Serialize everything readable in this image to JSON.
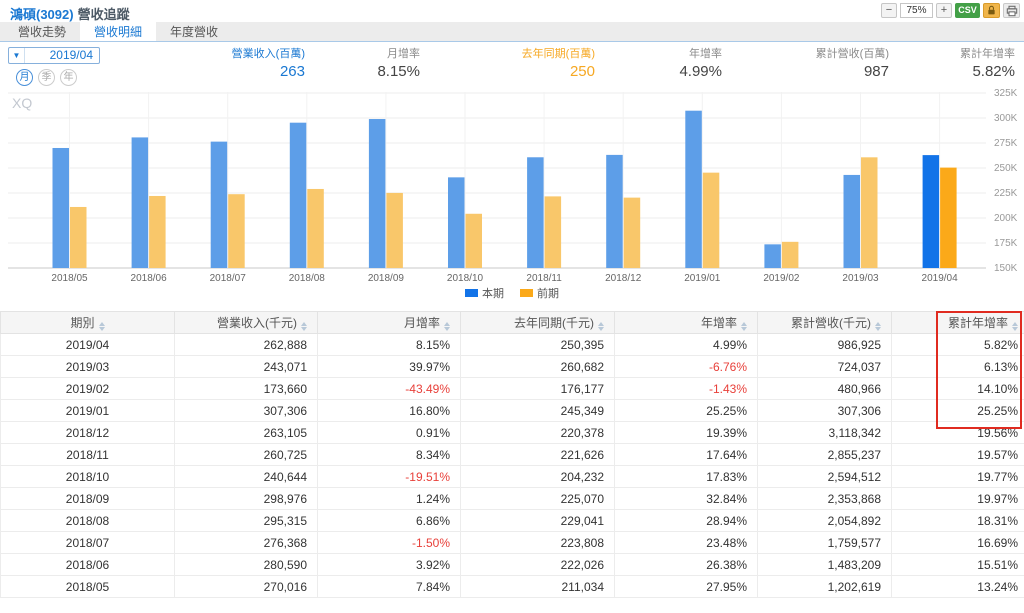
{
  "header": {
    "title_stock": "鴻碩(3092)",
    "title_suffix": "營收追蹤",
    "zoom_out": "−",
    "zoom_level": "75%",
    "zoom_in": "+",
    "csv_label": "CSV"
  },
  "tabs": [
    {
      "label": "營收走勢",
      "active": false
    },
    {
      "label": "營收明細",
      "active": true
    },
    {
      "label": "年度營收",
      "active": false
    }
  ],
  "controls": {
    "period_select": "2019/04",
    "period_buttons": [
      {
        "label": "月",
        "active": true
      },
      {
        "label": "季",
        "active": false
      },
      {
        "label": "年",
        "active": false
      }
    ]
  },
  "stats": [
    {
      "label": "營業收入(百萬)",
      "value": "263",
      "color": "blue"
    },
    {
      "label": "月增率",
      "value": "8.15%",
      "color": "default"
    },
    {
      "label": "去年同期(百萬)",
      "value": "250",
      "color": "orange"
    },
    {
      "label": "年增率",
      "value": "4.99%",
      "color": "default"
    },
    {
      "label": "累計營收(百萬)",
      "value": "987",
      "color": "default"
    },
    {
      "label": "累計年增率",
      "value": "5.82%",
      "color": "default"
    }
  ],
  "chart_data": {
    "type": "bar",
    "watermark": "XQ",
    "categories": [
      "2018/05",
      "2018/06",
      "2018/07",
      "2018/08",
      "2018/09",
      "2018/10",
      "2018/11",
      "2018/12",
      "2019/01",
      "2019/02",
      "2019/03",
      "2019/04"
    ],
    "series": [
      {
        "name": "本期",
        "color": "#5d9ee8",
        "highlight_color": "#1273e8",
        "values": [
          270016,
          280590,
          276368,
          295315,
          298976,
          240644,
          260725,
          263105,
          307306,
          173660,
          243071,
          262888
        ]
      },
      {
        "name": "前期",
        "color": "#f9c76a",
        "highlight_color": "#fba919",
        "values": [
          211034,
          222026,
          223808,
          229041,
          225070,
          204232,
          221626,
          220378,
          245349,
          176177,
          260682,
          250395
        ]
      }
    ],
    "highlight_index": 11,
    "ylim": [
      150000,
      325000
    ],
    "y_ticks": [
      "325K",
      "300K",
      "275K",
      "250K",
      "225K",
      "200K",
      "175K",
      "150K"
    ],
    "grid": true,
    "legend_position": "bottom"
  },
  "table": {
    "columns": [
      "期別",
      "營業收入(千元)",
      "月增率",
      "去年同期(千元)",
      "年增率",
      "累計營收(千元)",
      "累計年增率"
    ],
    "rows": [
      [
        "2019/04",
        "262,888",
        "8.15%",
        "250,395",
        "4.99%",
        "986,925",
        "5.82%"
      ],
      [
        "2019/03",
        "243,071",
        "39.97%",
        "260,682",
        "-6.76%",
        "724,037",
        "6.13%"
      ],
      [
        "2019/02",
        "173,660",
        "-43.49%",
        "176,177",
        "-1.43%",
        "480,966",
        "14.10%"
      ],
      [
        "2019/01",
        "307,306",
        "16.80%",
        "245,349",
        "25.25%",
        "307,306",
        "25.25%"
      ],
      [
        "2018/12",
        "263,105",
        "0.91%",
        "220,378",
        "19.39%",
        "3,118,342",
        "19.56%"
      ],
      [
        "2018/11",
        "260,725",
        "8.34%",
        "221,626",
        "17.64%",
        "2,855,237",
        "19.57%"
      ],
      [
        "2018/10",
        "240,644",
        "-19.51%",
        "204,232",
        "17.83%",
        "2,594,512",
        "19.77%"
      ],
      [
        "2018/09",
        "298,976",
        "1.24%",
        "225,070",
        "32.84%",
        "2,353,868",
        "19.97%"
      ],
      [
        "2018/08",
        "295,315",
        "6.86%",
        "229,041",
        "28.94%",
        "2,054,892",
        "18.31%"
      ],
      [
        "2018/07",
        "276,368",
        "-1.50%",
        "223,808",
        "23.48%",
        "1,759,577",
        "16.69%"
      ],
      [
        "2018/06",
        "280,590",
        "3.92%",
        "222,026",
        "26.38%",
        "1,483,209",
        "15.51%"
      ],
      [
        "2018/05",
        "270,016",
        "7.84%",
        "211,034",
        "27.95%",
        "1,202,619",
        "13.24%"
      ]
    ],
    "highlight_column_label": "累計年增率",
    "highlight_row_count": 4
  },
  "colors": {
    "accent_blue": "#1a78d2",
    "bar_blue": "#5d9ee8",
    "bar_blue_active": "#1273e8",
    "bar_orange": "#f9c76a",
    "bar_orange_active": "#fba919",
    "stat_orange": "#f6a823",
    "negative_red": "#e8403a",
    "highlight_box_red": "#e02b20",
    "csv_green": "#43a047",
    "lock_amber": "#f0b54a"
  }
}
